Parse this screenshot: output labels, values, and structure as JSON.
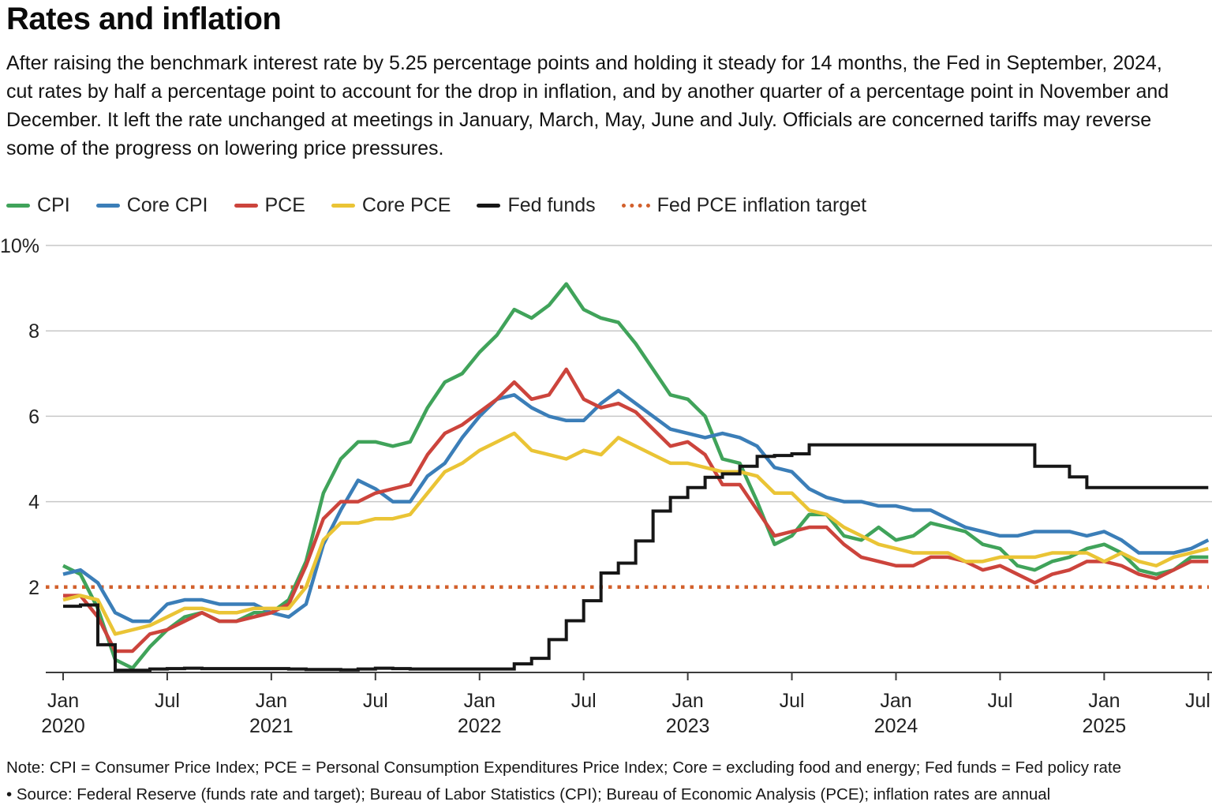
{
  "header": {
    "title": "Rates and inflation",
    "description": "After raising the benchmark interest rate by 5.25 percentage points and holding it steady for 14 months, the Fed in September, 2024, cut rates by half a percentage point to account for the drop in inflation, and by another quarter of a percentage point in November and December. It left the rate unchanged at meetings in January, March, May, June and July. Officials are concerned tariffs may reverse some of the progress on lowering price pressures.",
    "accent_colors": {
      "cpi_green": "#40a35a",
      "core_cpi_blue": "#3b7eb8",
      "pce_red": "#cc443c",
      "core_pce_yellow": "#eac435",
      "fed_funds_black": "#161616",
      "target_orange": "#d2602c"
    }
  },
  "chart_data": {
    "type": "line",
    "x_start": "Jan 2020",
    "x_end": "Jul 2025",
    "x_frequency": "monthly",
    "ylim": [
      0,
      10
    ],
    "grid": "horizontal-only",
    "legend_position": "top-left",
    "yticks": [
      {
        "value": 2,
        "label": "2"
      },
      {
        "value": 4,
        "label": "4"
      },
      {
        "value": 6,
        "label": "6"
      },
      {
        "value": 8,
        "label": "8"
      },
      {
        "value": 10,
        "label": "10%"
      }
    ],
    "solid_gridline_values": [
      4,
      6,
      8,
      10
    ],
    "x_ticks": [
      {
        "m": 0,
        "month": "Jan",
        "year": "2020"
      },
      {
        "m": 6,
        "month": "Jul"
      },
      {
        "m": 12,
        "month": "Jan",
        "year": "2021"
      },
      {
        "m": 18,
        "month": "Jul"
      },
      {
        "m": 24,
        "month": "Jan",
        "year": "2022"
      },
      {
        "m": 30,
        "month": "Jul"
      },
      {
        "m": 36,
        "month": "Jan",
        "year": "2023"
      },
      {
        "m": 42,
        "month": "Jul"
      },
      {
        "m": 48,
        "month": "Jan",
        "year": "2024"
      },
      {
        "m": 54,
        "month": "Jul"
      },
      {
        "m": 60,
        "month": "Jan",
        "year": "2025"
      },
      {
        "m": 66,
        "month": "Jul"
      }
    ],
    "target_line": {
      "label": "Fed PCE inflation target",
      "slug": "fed-pce-inflation-target",
      "value": 2,
      "color": "#d2602c",
      "style": "dotted"
    },
    "series": [
      {
        "name": "CPI",
        "slug": "cpi",
        "color": "#40a35a",
        "render": "line",
        "values": [
          2.5,
          2.3,
          1.5,
          0.3,
          0.1,
          0.6,
          1.0,
          1.3,
          1.4,
          1.2,
          1.2,
          1.4,
          1.4,
          1.7,
          2.6,
          4.2,
          5.0,
          5.4,
          5.4,
          5.3,
          5.4,
          6.2,
          6.8,
          7.0,
          7.5,
          7.9,
          8.5,
          8.3,
          8.6,
          9.1,
          8.5,
          8.3,
          8.2,
          7.7,
          7.1,
          6.5,
          6.4,
          6.0,
          5.0,
          4.9,
          4.0,
          3.0,
          3.2,
          3.7,
          3.7,
          3.2,
          3.1,
          3.4,
          3.1,
          3.2,
          3.5,
          3.4,
          3.3,
          3.0,
          2.9,
          2.5,
          2.4,
          2.6,
          2.7,
          2.9,
          3.0,
          2.8,
          2.4,
          2.3,
          2.4,
          2.7,
          2.7
        ]
      },
      {
        "name": "Core CPI",
        "slug": "core-cpi",
        "color": "#3b7eb8",
        "render": "line",
        "values": [
          2.3,
          2.4,
          2.1,
          1.4,
          1.2,
          1.2,
          1.6,
          1.7,
          1.7,
          1.6,
          1.6,
          1.6,
          1.4,
          1.3,
          1.6,
          3.0,
          3.8,
          4.5,
          4.3,
          4.0,
          4.0,
          4.6,
          4.9,
          5.5,
          6.0,
          6.4,
          6.5,
          6.2,
          6.0,
          5.9,
          5.9,
          6.3,
          6.6,
          6.3,
          6.0,
          5.7,
          5.6,
          5.5,
          5.6,
          5.5,
          5.3,
          4.8,
          4.7,
          4.3,
          4.1,
          4.0,
          4.0,
          3.9,
          3.9,
          3.8,
          3.8,
          3.6,
          3.4,
          3.3,
          3.2,
          3.2,
          3.3,
          3.3,
          3.3,
          3.2,
          3.3,
          3.1,
          2.8,
          2.8,
          2.8,
          2.9,
          3.1
        ]
      },
      {
        "name": "PCE",
        "slug": "pce",
        "color": "#cc443c",
        "render": "line",
        "values": [
          1.8,
          1.8,
          1.3,
          0.5,
          0.5,
          0.9,
          1.0,
          1.2,
          1.4,
          1.2,
          1.2,
          1.3,
          1.4,
          1.6,
          2.5,
          3.6,
          4.0,
          4.0,
          4.2,
          4.3,
          4.4,
          5.1,
          5.6,
          5.8,
          6.1,
          6.4,
          6.8,
          6.4,
          6.5,
          7.1,
          6.4,
          6.2,
          6.3,
          6.1,
          5.7,
          5.3,
          5.4,
          5.1,
          4.4,
          4.4,
          3.8,
          3.2,
          3.3,
          3.4,
          3.4,
          3.0,
          2.7,
          2.6,
          2.5,
          2.5,
          2.7,
          2.7,
          2.6,
          2.4,
          2.5,
          2.3,
          2.1,
          2.3,
          2.4,
          2.6,
          2.6,
          2.5,
          2.3,
          2.2,
          2.4,
          2.6,
          2.6
        ]
      },
      {
        "name": "Core PCE",
        "slug": "core-pce",
        "color": "#eac435",
        "render": "line",
        "values": [
          1.7,
          1.8,
          1.7,
          0.9,
          1.0,
          1.1,
          1.3,
          1.5,
          1.5,
          1.4,
          1.4,
          1.5,
          1.5,
          1.5,
          2.0,
          3.1,
          3.5,
          3.5,
          3.6,
          3.6,
          3.7,
          4.2,
          4.7,
          4.9,
          5.2,
          5.4,
          5.6,
          5.2,
          5.1,
          5.0,
          5.2,
          5.1,
          5.5,
          5.3,
          5.1,
          4.9,
          4.9,
          4.8,
          4.7,
          4.7,
          4.6,
          4.2,
          4.2,
          3.8,
          3.7,
          3.4,
          3.2,
          3.0,
          2.9,
          2.8,
          2.8,
          2.8,
          2.6,
          2.6,
          2.7,
          2.7,
          2.7,
          2.8,
          2.8,
          2.8,
          2.6,
          2.8,
          2.6,
          2.5,
          2.7,
          2.8,
          2.9
        ]
      },
      {
        "name": "Fed funds",
        "slug": "fed-funds",
        "color": "#161616",
        "render": "step",
        "values": [
          1.55,
          1.58,
          0.65,
          0.05,
          0.05,
          0.08,
          0.09,
          0.1,
          0.09,
          0.09,
          0.09,
          0.09,
          0.09,
          0.08,
          0.07,
          0.07,
          0.06,
          0.08,
          0.1,
          0.09,
          0.08,
          0.08,
          0.08,
          0.08,
          0.08,
          0.08,
          0.2,
          0.33,
          0.77,
          1.21,
          1.68,
          2.33,
          2.56,
          3.08,
          3.78,
          4.1,
          4.33,
          4.57,
          4.65,
          4.83,
          5.06,
          5.08,
          5.12,
          5.33,
          5.33,
          5.33,
          5.33,
          5.33,
          5.33,
          5.33,
          5.33,
          5.33,
          5.33,
          5.33,
          5.33,
          5.33,
          4.83,
          4.83,
          4.58,
          4.33,
          4.33,
          4.33,
          4.33,
          4.33,
          4.33,
          4.33,
          4.33
        ]
      }
    ]
  },
  "footnotes": {
    "note": "Note: CPI = Consumer Price Index; PCE = Personal Consumption Expenditures Price Index; Core = excluding food and energy; Fed funds = Fed policy rate",
    "source": "• Source: Federal Reserve (funds rate and target); Bureau of Labor Statistics (CPI); Bureau of Economic Analysis (PCE); inflation rates are annual"
  }
}
